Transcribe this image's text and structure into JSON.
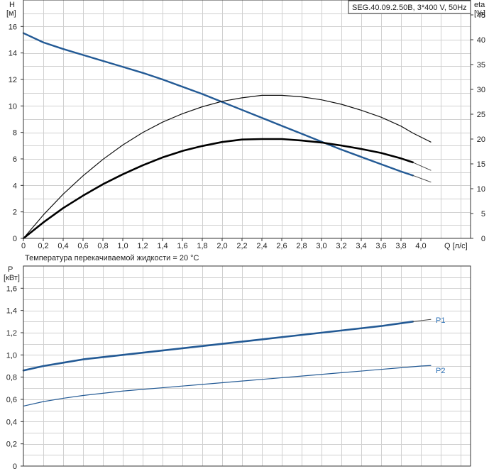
{
  "chart_data": [
    {
      "type": "line",
      "title": "SEG.40.09.2.50B, 3*400 V, 50Hz",
      "note": "Температура перекачиваемой жидкости = 20 °C",
      "xlabel": "Q [л/с]",
      "ylabel_left": [
        "H",
        "[м]"
      ],
      "ylabel_right": [
        "eta",
        "[%]"
      ],
      "xlim": [
        0,
        4.5
      ],
      "ylim_left": [
        0,
        18
      ],
      "ylim_right": [
        0,
        48
      ],
      "x_ticks": [
        "0",
        "0,2",
        "0,4",
        "0,6",
        "0,8",
        "1,0",
        "1,2",
        "1,4",
        "1,6",
        "1,8",
        "2,0",
        "2,2",
        "2,4",
        "2,6",
        "2,8",
        "3,0",
        "3,2",
        "3,4",
        "3,6",
        "3,8",
        "4,0"
      ],
      "y_ticks_left": [
        "0",
        "2",
        "4",
        "6",
        "8",
        "10",
        "12",
        "14",
        "16"
      ],
      "y_ticks_right": [
        "0",
        "5",
        "10",
        "15",
        "20",
        "25",
        "30",
        "35",
        "40",
        "45"
      ],
      "grid": true,
      "series": [
        {
          "axis": "left",
          "style": "blue",
          "x": [
            0,
            0.2,
            0.4,
            0.6,
            0.8,
            1.0,
            1.2,
            1.4,
            1.6,
            1.8,
            2.0,
            2.2,
            2.4,
            2.6,
            2.8,
            3.0,
            3.2,
            3.4,
            3.6,
            3.8,
            3.92
          ],
          "values": [
            15.5,
            14.8,
            14.3,
            13.85,
            13.4,
            12.95,
            12.5,
            12.0,
            11.45,
            10.9,
            10.3,
            9.7,
            9.1,
            8.5,
            7.9,
            7.3,
            6.7,
            6.15,
            5.6,
            5.05,
            4.75
          ]
        },
        {
          "axis": "left",
          "style": "grey-tail",
          "x": [
            3.92,
            4.1
          ],
          "values": [
            4.75,
            4.25
          ]
        },
        {
          "axis": "right",
          "style": "thin-black",
          "x": [
            0,
            0.2,
            0.4,
            0.6,
            0.8,
            1.0,
            1.2,
            1.4,
            1.6,
            1.8,
            2.0,
            2.2,
            2.4,
            2.6,
            2.8,
            3.0,
            3.2,
            3.4,
            3.6,
            3.8,
            3.92,
            4.1
          ],
          "values": [
            0,
            4.7,
            8.9,
            12.6,
            15.9,
            18.8,
            21.3,
            23.4,
            25.1,
            26.5,
            27.6,
            28.3,
            28.8,
            28.8,
            28.5,
            27.9,
            27.0,
            25.8,
            24.4,
            22.6,
            21.2,
            19.4
          ]
        },
        {
          "axis": "right",
          "style": "thick-black",
          "x": [
            0,
            0.2,
            0.4,
            0.6,
            0.8,
            1.0,
            1.2,
            1.4,
            1.6,
            1.8,
            2.0,
            2.2,
            2.4,
            2.6,
            2.8,
            3.0,
            3.2,
            3.4,
            3.6,
            3.8,
            3.92
          ],
          "values": [
            0,
            3.2,
            6.1,
            8.6,
            10.9,
            12.9,
            14.7,
            16.3,
            17.6,
            18.6,
            19.4,
            19.9,
            20.0,
            20.0,
            19.7,
            19.3,
            18.7,
            18.0,
            17.2,
            16.1,
            15.3
          ]
        },
        {
          "axis": "right",
          "style": "grey-tail",
          "x": [
            3.92,
            4.1
          ],
          "values": [
            15.3,
            13.7
          ]
        }
      ]
    },
    {
      "type": "line",
      "xlim": [
        0,
        4.5
      ],
      "ylabel": [
        "P",
        "[кВт]"
      ],
      "ylim": [
        0,
        1.8
      ],
      "y_ticks": [
        "0",
        "0,2",
        "0,4",
        "0,6",
        "0,8",
        "1,0",
        "1,2",
        "1,4",
        "1,6"
      ],
      "grid": true,
      "series": [
        {
          "name": "P1",
          "style": "thick-blue",
          "x": [
            0,
            0.2,
            0.4,
            0.6,
            0.8,
            1.0,
            1.2,
            1.4,
            1.6,
            1.8,
            2.0,
            2.2,
            2.4,
            2.6,
            2.8,
            3.0,
            3.2,
            3.4,
            3.6,
            3.8,
            3.92
          ],
          "values": [
            0.86,
            0.9,
            0.93,
            0.96,
            0.98,
            1.0,
            1.02,
            1.04,
            1.06,
            1.08,
            1.1,
            1.12,
            1.14,
            1.16,
            1.18,
            1.2,
            1.22,
            1.24,
            1.26,
            1.285,
            1.3
          ]
        },
        {
          "name": "",
          "style": "grey-tail",
          "x": [
            3.92,
            4.1
          ],
          "values": [
            1.3,
            1.32
          ]
        },
        {
          "name": "P2",
          "style": "thin-blue",
          "x": [
            0,
            0.2,
            0.4,
            0.6,
            0.8,
            1.0,
            1.2,
            1.4,
            1.6,
            1.8,
            2.0,
            2.2,
            2.4,
            2.6,
            2.8,
            3.0,
            3.2,
            3.4,
            3.6,
            3.8,
            4.0,
            4.1
          ],
          "values": [
            0.54,
            0.58,
            0.61,
            0.635,
            0.655,
            0.675,
            0.69,
            0.705,
            0.72,
            0.735,
            0.75,
            0.765,
            0.78,
            0.795,
            0.81,
            0.825,
            0.84,
            0.855,
            0.87,
            0.885,
            0.9,
            0.905
          ]
        }
      ]
    }
  ]
}
